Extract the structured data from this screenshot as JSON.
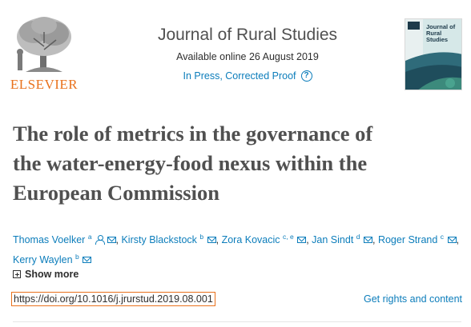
{
  "header": {
    "publisher": "ELSEVIER",
    "journal_title": "Journal of Rural Studies",
    "available": "Available online 26 August 2019",
    "status": "In Press, Corrected Proof",
    "cover_title": "Journal of Rural Studies"
  },
  "article": {
    "title_lines": [
      "The role of metrics in the governance of",
      "the water-energy-food nexus within the",
      "European Commission"
    ],
    "authors": [
      {
        "name": "Thomas Voelker",
        "sup": "a"
      },
      {
        "name": "Kirsty Blackstock",
        "sup": "b"
      },
      {
        "name": "Zora Kovacic",
        "sup": "c, e"
      },
      {
        "name": "Jan Sindt",
        "sup": "d"
      },
      {
        "name": "Roger Strand",
        "sup": "c"
      },
      {
        "name": "Kerry Waylen",
        "sup": "b"
      }
    ],
    "show_more": "Show more",
    "doi": "https://doi.org/10.1016/j.jrurstud.2019.08.001",
    "rights": "Get rights and content"
  },
  "colors": {
    "accent": "#0c7dbb",
    "brand": "#e9711c",
    "text": "#2e2e2e"
  },
  "icons": [
    "elsevier-tree-logo",
    "help-icon",
    "person-icon",
    "mail-icon",
    "plus-icon"
  ]
}
